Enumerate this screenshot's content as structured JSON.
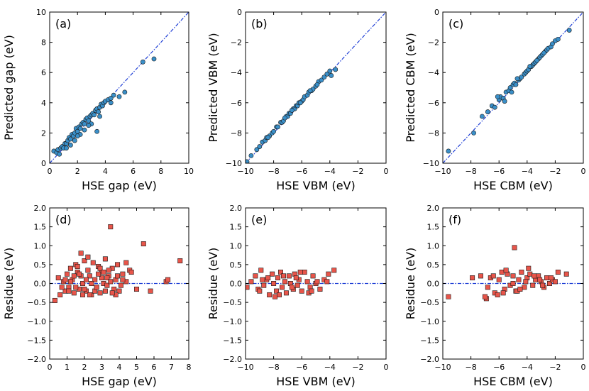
{
  "colors": {
    "scatter_fill": "#3a8fc8",
    "residue_fill": "#e8554a",
    "marker_edge": "#1a1a1a",
    "ref_line": "#1f3fd6"
  },
  "chart_data": [
    {
      "type": "scatter",
      "panel": "(a)",
      "kind": "parity",
      "xlabel": "HSE gap (eV)",
      "ylabel": "Predicted gap (eV)",
      "xlim": [
        0,
        10
      ],
      "ylim": [
        0,
        10
      ],
      "xticks": [
        0,
        2,
        4,
        6,
        8,
        10
      ],
      "yticks": [
        0,
        2,
        4,
        6,
        8,
        10
      ],
      "tick_labels_x": [
        "0",
        "2",
        "4",
        "6",
        "8",
        "10"
      ],
      "tick_labels_y": [
        "0",
        "2",
        "4",
        "6",
        "8",
        "10"
      ],
      "x": [
        0.3,
        0.5,
        0.6,
        0.8,
        0.9,
        1.0,
        1.1,
        1.2,
        1.3,
        1.4,
        1.5,
        1.6,
        1.7,
        1.8,
        1.9,
        2.0,
        2.1,
        2.2,
        2.3,
        2.4,
        2.5,
        2.6,
        2.7,
        2.8,
        2.9,
        3.0,
        3.1,
        3.2,
        3.3,
        3.4,
        3.5,
        3.6,
        3.7,
        3.8,
        3.9,
        4.0,
        4.2,
        4.4,
        4.6,
        5.0,
        5.4,
        6.7,
        7.5,
        1.2,
        1.8,
        2.5,
        3.0,
        3.6,
        2.2,
        2.8,
        3.4,
        0.7,
        1.5,
        2.0,
        4.4
      ],
      "y": [
        0.8,
        0.7,
        0.9,
        1.0,
        1.1,
        1.0,
        1.3,
        1.3,
        1.5,
        1.7,
        1.6,
        1.9,
        1.8,
        2.0,
        2.3,
        2.1,
        2.4,
        2.3,
        2.6,
        2.7,
        2.6,
        2.9,
        3.0,
        2.8,
        3.1,
        3.2,
        3.3,
        3.2,
        3.5,
        3.6,
        3.4,
        3.7,
        3.9,
        3.8,
        4.0,
        4.1,
        4.2,
        4.3,
        4.5,
        4.4,
        4.7,
        6.7,
        6.9,
        1.0,
        1.5,
        2.2,
        2.6,
        3.1,
        1.9,
        2.5,
        2.1,
        0.6,
        1.2,
        1.8,
        4.0
      ]
    },
    {
      "type": "scatter",
      "panel": "(b)",
      "kind": "parity",
      "xlabel": "HSE VBM (eV)",
      "ylabel": "Predicted VBM (eV)",
      "xlim": [
        -10,
        0
      ],
      "ylim": [
        -10,
        0
      ],
      "xticks": [
        -10,
        -8,
        -6,
        -4,
        -2,
        0
      ],
      "yticks": [
        -10,
        -8,
        -6,
        -4,
        -2,
        0
      ],
      "tick_labels_x": [
        "−10",
        "−8",
        "−6",
        "−4",
        "−2",
        "0"
      ],
      "tick_labels_y": [
        "−10",
        "−8",
        "−6",
        "−4",
        "−2",
        "0"
      ],
      "x": [
        -9.9,
        -9.6,
        -9.2,
        -9.0,
        -8.8,
        -8.6,
        -8.5,
        -8.3,
        -8.1,
        -8.0,
        -7.8,
        -7.7,
        -7.5,
        -7.4,
        -7.3,
        -7.1,
        -7.0,
        -6.9,
        -6.8,
        -6.6,
        -6.5,
        -6.4,
        -6.3,
        -6.2,
        -6.0,
        -5.9,
        -5.8,
        -5.6,
        -5.5,
        -5.3,
        -5.2,
        -5.0,
        -4.8,
        -4.6,
        -4.4,
        -4.2,
        -4.0,
        -3.9,
        -3.6,
        -7.2,
        -6.7,
        -6.1,
        -5.4,
        -8.4,
        -4.9
      ],
      "y": [
        -9.9,
        -9.5,
        -9.1,
        -8.9,
        -8.6,
        -8.5,
        -8.3,
        -8.2,
        -8.0,
        -7.9,
        -7.6,
        -7.6,
        -7.3,
        -7.3,
        -7.2,
        -6.9,
        -6.9,
        -6.7,
        -6.7,
        -6.4,
        -6.4,
        -6.2,
        -6.2,
        -6.0,
        -5.9,
        -5.8,
        -5.6,
        -5.5,
        -5.3,
        -5.2,
        -5.1,
        -4.9,
        -4.6,
        -4.5,
        -4.3,
        -4.1,
        -3.9,
        -4.2,
        -3.8,
        -7.0,
        -6.5,
        -6.0,
        -5.2,
        -8.3,
        -4.8
      ]
    },
    {
      "type": "scatter",
      "panel": "(c)",
      "kind": "parity",
      "xlabel": "HSE CBM (eV)",
      "ylabel": "Predicted CBM (eV)",
      "xlim": [
        -10,
        0
      ],
      "ylim": [
        -10,
        0
      ],
      "xticks": [
        -10,
        -8,
        -6,
        -4,
        -2,
        0
      ],
      "yticks": [
        -10,
        -8,
        -6,
        -4,
        -2,
        0
      ],
      "tick_labels_x": [
        "−10",
        "−8",
        "−6",
        "−4",
        "−2",
        "0"
      ],
      "tick_labels_y": [
        "−10",
        "−8",
        "−6",
        "−4",
        "−2",
        "0"
      ],
      "x": [
        -9.6,
        -7.8,
        -7.2,
        -6.8,
        -6.5,
        -6.3,
        -6.0,
        -5.9,
        -5.7,
        -5.5,
        -5.3,
        -5.2,
        -5.0,
        -4.9,
        -4.8,
        -4.6,
        -4.5,
        -4.4,
        -4.2,
        -4.1,
        -4.0,
        -3.9,
        -3.7,
        -3.6,
        -3.5,
        -3.4,
        -3.2,
        -3.1,
        -3.0,
        -2.9,
        -2.7,
        -2.6,
        -2.5,
        -2.3,
        -2.2,
        -2.0,
        -1.8,
        -1.0,
        -6.1,
        -5.6,
        -4.7,
        -3.8,
        -3.3,
        -2.8,
        -5.1
      ],
      "y": [
        -9.2,
        -8.0,
        -6.9,
        -6.6,
        -6.2,
        -6.3,
        -5.8,
        -5.6,
        -5.7,
        -5.3,
        -5.2,
        -5.0,
        -4.8,
        -4.7,
        -4.8,
        -4.5,
        -4.4,
        -4.3,
        -4.1,
        -4.0,
        -3.9,
        -3.8,
        -3.6,
        -3.5,
        -3.4,
        -3.3,
        -3.1,
        -3.0,
        -2.9,
        -2.8,
        -2.6,
        -2.5,
        -2.4,
        -2.3,
        -2.1,
        -1.9,
        -1.8,
        -1.2,
        -5.6,
        -5.9,
        -4.4,
        -3.6,
        -3.2,
        -2.7,
        -5.3
      ]
    },
    {
      "type": "scatter",
      "panel": "(d)",
      "kind": "residue",
      "xlabel": "HSE gap (eV)",
      "ylabel": "Residue (eV)",
      "xlim": [
        0,
        8
      ],
      "ylim": [
        -2,
        2
      ],
      "xticks": [
        0,
        1,
        2,
        3,
        4,
        5,
        6,
        7,
        8
      ],
      "yticks": [
        -2,
        -1.5,
        -1,
        -0.5,
        0,
        0.5,
        1,
        1.5,
        2
      ],
      "tick_labels_x": [
        "0",
        "1",
        "2",
        "3",
        "4",
        "5",
        "6",
        "7",
        "8"
      ],
      "tick_labels_y": [
        "−2.0",
        "−1.5",
        "−1.0",
        "−0.5",
        "0.0",
        "0.5",
        "1.0",
        "1.5",
        "2.0"
      ],
      "x": [
        0.3,
        0.5,
        0.6,
        0.8,
        0.9,
        1.0,
        1.1,
        1.2,
        1.3,
        1.4,
        1.5,
        1.6,
        1.7,
        1.8,
        1.9,
        2.0,
        2.1,
        2.2,
        2.3,
        2.4,
        2.5,
        2.6,
        2.7,
        2.8,
        2.9,
        3.0,
        3.1,
        3.2,
        3.3,
        3.4,
        3.5,
        3.6,
        3.7,
        3.8,
        3.9,
        4.0,
        4.2,
        4.4,
        4.6,
        5.0,
        5.4,
        5.8,
        6.7,
        7.5,
        1.5,
        1.8,
        2.2,
        2.6,
        3.0,
        3.4,
        3.8,
        4.2,
        1.2,
        2.0,
        2.8,
        3.6,
        4.4,
        0.7,
        1.6,
        2.4,
        3.2,
        1.4,
        2.3,
        3.3,
        0.9,
        1.9,
        2.9,
        3.9,
        1.1,
        2.1,
        3.1,
        4.1,
        1.7,
        2.7,
        3.5,
        4.7,
        6.8
      ],
      "y": [
        -0.45,
        0.15,
        -0.3,
        0.05,
        -0.2,
        0.25,
        -0.1,
        0.4,
        0.1,
        -0.25,
        0.5,
        0.3,
        -0.15,
        0.8,
        0.0,
        0.6,
        -0.2,
        0.35,
        0.2,
        -0.3,
        0.55,
        0.1,
        -0.1,
        0.45,
        -0.25,
        0.3,
        0.0,
        0.65,
        -0.05,
        0.2,
        1.5,
        0.4,
        -0.15,
        0.1,
        0.5,
        -0.2,
        0.25,
        0.05,
        0.35,
        -0.15,
        1.05,
        -0.2,
        0.05,
        0.6,
        -0.1,
        0.2,
        0.7,
        -0.2,
        0.15,
        0.35,
        -0.3,
        0.1,
        0.05,
        -0.15,
        0.25,
        -0.25,
        0.55,
        -0.1,
        0.45,
        0.0,
        -0.2,
        0.2,
        -0.3,
        0.15,
        0.1,
        -0.3,
        0.4,
        0.2,
        -0.2,
        0.1,
        0.3,
        -0.05,
        0.25,
        -0.1,
        0.05,
        0.3,
        0.1
      ]
    },
    {
      "type": "scatter",
      "panel": "(e)",
      "kind": "residue",
      "xlabel": "HSE VBM (eV)",
      "ylabel": "Residue (eV)",
      "xlim": [
        -10,
        0
      ],
      "ylim": [
        -2,
        2
      ],
      "xticks": [
        -10,
        -8,
        -6,
        -4,
        -2,
        0
      ],
      "yticks": [
        -2,
        -1.5,
        -1,
        -0.5,
        0,
        0.5,
        1,
        1.5,
        2
      ],
      "tick_labels_x": [
        "−10",
        "−8",
        "−6",
        "−4",
        "−2",
        "0"
      ],
      "tick_labels_y": [
        "−2.0",
        "−1.5",
        "−1.0",
        "−0.5",
        "0.0",
        "0.5",
        "1.0",
        "1.5",
        "2.0"
      ],
      "x": [
        -9.9,
        -9.6,
        -9.3,
        -9.1,
        -8.9,
        -8.7,
        -8.5,
        -8.3,
        -8.1,
        -8.0,
        -7.8,
        -7.7,
        -7.5,
        -7.4,
        -7.2,
        -7.1,
        -6.9,
        -6.8,
        -6.6,
        -6.5,
        -6.3,
        -6.2,
        -6.0,
        -5.8,
        -5.6,
        -5.4,
        -5.2,
        -5.0,
        -4.7,
        -4.4,
        -4.1,
        -3.7,
        -9.0,
        -8.4,
        -7.9,
        -7.3,
        -6.7,
        -6.1,
        -5.5,
        -4.9,
        -8.8,
        -7.6,
        -6.4,
        -5.3,
        -4.2
      ],
      "y": [
        -0.1,
        0.05,
        0.2,
        -0.15,
        0.35,
        -0.05,
        0.1,
        -0.3,
        0.25,
        0.0,
        -0.2,
        0.15,
        0.3,
        -0.1,
        0.05,
        -0.25,
        0.2,
        0.0,
        -0.15,
        0.25,
        -0.05,
        0.1,
        -0.2,
        0.3,
        0.05,
        -0.1,
        0.2,
        0.0,
        -0.15,
        0.1,
        0.25,
        0.35,
        -0.2,
        0.15,
        -0.35,
        0.2,
        -0.1,
        0.3,
        -0.25,
        0.05,
        0.1,
        -0.3,
        0.15,
        -0.2,
        0.05
      ]
    },
    {
      "type": "scatter",
      "panel": "(f)",
      "kind": "residue",
      "xlabel": "HSE CBM (eV)",
      "ylabel": "Residue (eV)",
      "xlim": [
        -10,
        0
      ],
      "ylim": [
        -2,
        2
      ],
      "xticks": [
        -10,
        -8,
        -6,
        -4,
        -2,
        0
      ],
      "yticks": [
        -2,
        -1.5,
        -1,
        -0.5,
        0,
        0.5,
        1,
        1.5,
        2
      ],
      "tick_labels_x": [
        "−10",
        "−8",
        "−6",
        "−4",
        "−2",
        "0"
      ],
      "tick_labels_y": [
        "−2.0",
        "−1.5",
        "−1.0",
        "−0.5",
        "0.0",
        "0.5",
        "1.0",
        "1.5",
        "2.0"
      ],
      "x": [
        -9.6,
        -7.9,
        -7.3,
        -6.9,
        -6.6,
        -6.3,
        -6.0,
        -5.8,
        -5.6,
        -5.4,
        -5.2,
        -5.0,
        -4.9,
        -4.8,
        -4.6,
        -4.4,
        -4.2,
        -4.0,
        -3.8,
        -3.6,
        -3.4,
        -3.2,
        -3.0,
        -2.8,
        -2.6,
        -2.4,
        -2.2,
        -2.0,
        -1.8,
        -1.2,
        -6.8,
        -6.1,
        -5.5,
        -4.7,
        -4.1,
        -3.5,
        -2.9,
        -2.3,
        -5.0,
        -7.0,
        -6.4,
        -5.7,
        -3.9,
        -3.1,
        -4.5
      ],
      "y": [
        -0.35,
        0.15,
        0.2,
        -0.4,
        0.15,
        -0.25,
        0.1,
        0.3,
        -0.15,
        0.25,
        -0.05,
        0.2,
        0.95,
        -0.2,
        0.1,
        0.3,
        -0.1,
        0.15,
        0.25,
        -0.05,
        0.1,
        0.2,
        0.05,
        -0.1,
        0.15,
        0.0,
        0.1,
        0.05,
        0.3,
        0.25,
        -0.1,
        -0.3,
        0.35,
        -0.2,
        0.05,
        0.2,
        -0.05,
        0.15,
        0.0,
        -0.35,
        0.2,
        -0.25,
        0.4,
        0.1,
        -0.15
      ]
    }
  ]
}
